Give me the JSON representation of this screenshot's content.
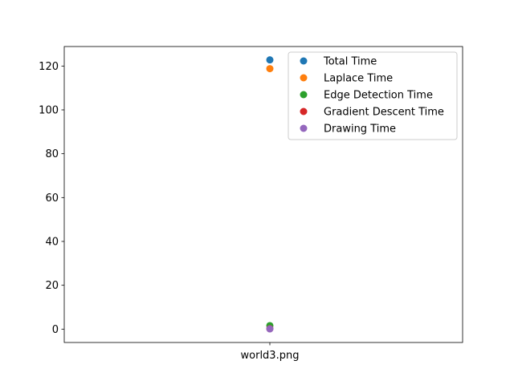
{
  "chart_data": {
    "type": "scatter",
    "categories": [
      "world3.png"
    ],
    "series": [
      {
        "name": "Total Time",
        "color": "#1f77b4",
        "values": [
          122.8
        ]
      },
      {
        "name": "Laplace Time",
        "color": "#ff7f0e",
        "values": [
          118.8
        ]
      },
      {
        "name": "Edge Detection Time",
        "color": "#2ca02c",
        "values": [
          1.6
        ]
      },
      {
        "name": "Gradient Descent Time",
        "color": "#d62728",
        "values": [
          0.2
        ]
      },
      {
        "name": "Drawing Time",
        "color": "#9467bd",
        "values": [
          0.1
        ]
      }
    ],
    "ylim": [
      -6.1,
      128.9
    ],
    "yticks": [
      0,
      20,
      40,
      60,
      80,
      100,
      120
    ],
    "legend_position": "top-right"
  }
}
